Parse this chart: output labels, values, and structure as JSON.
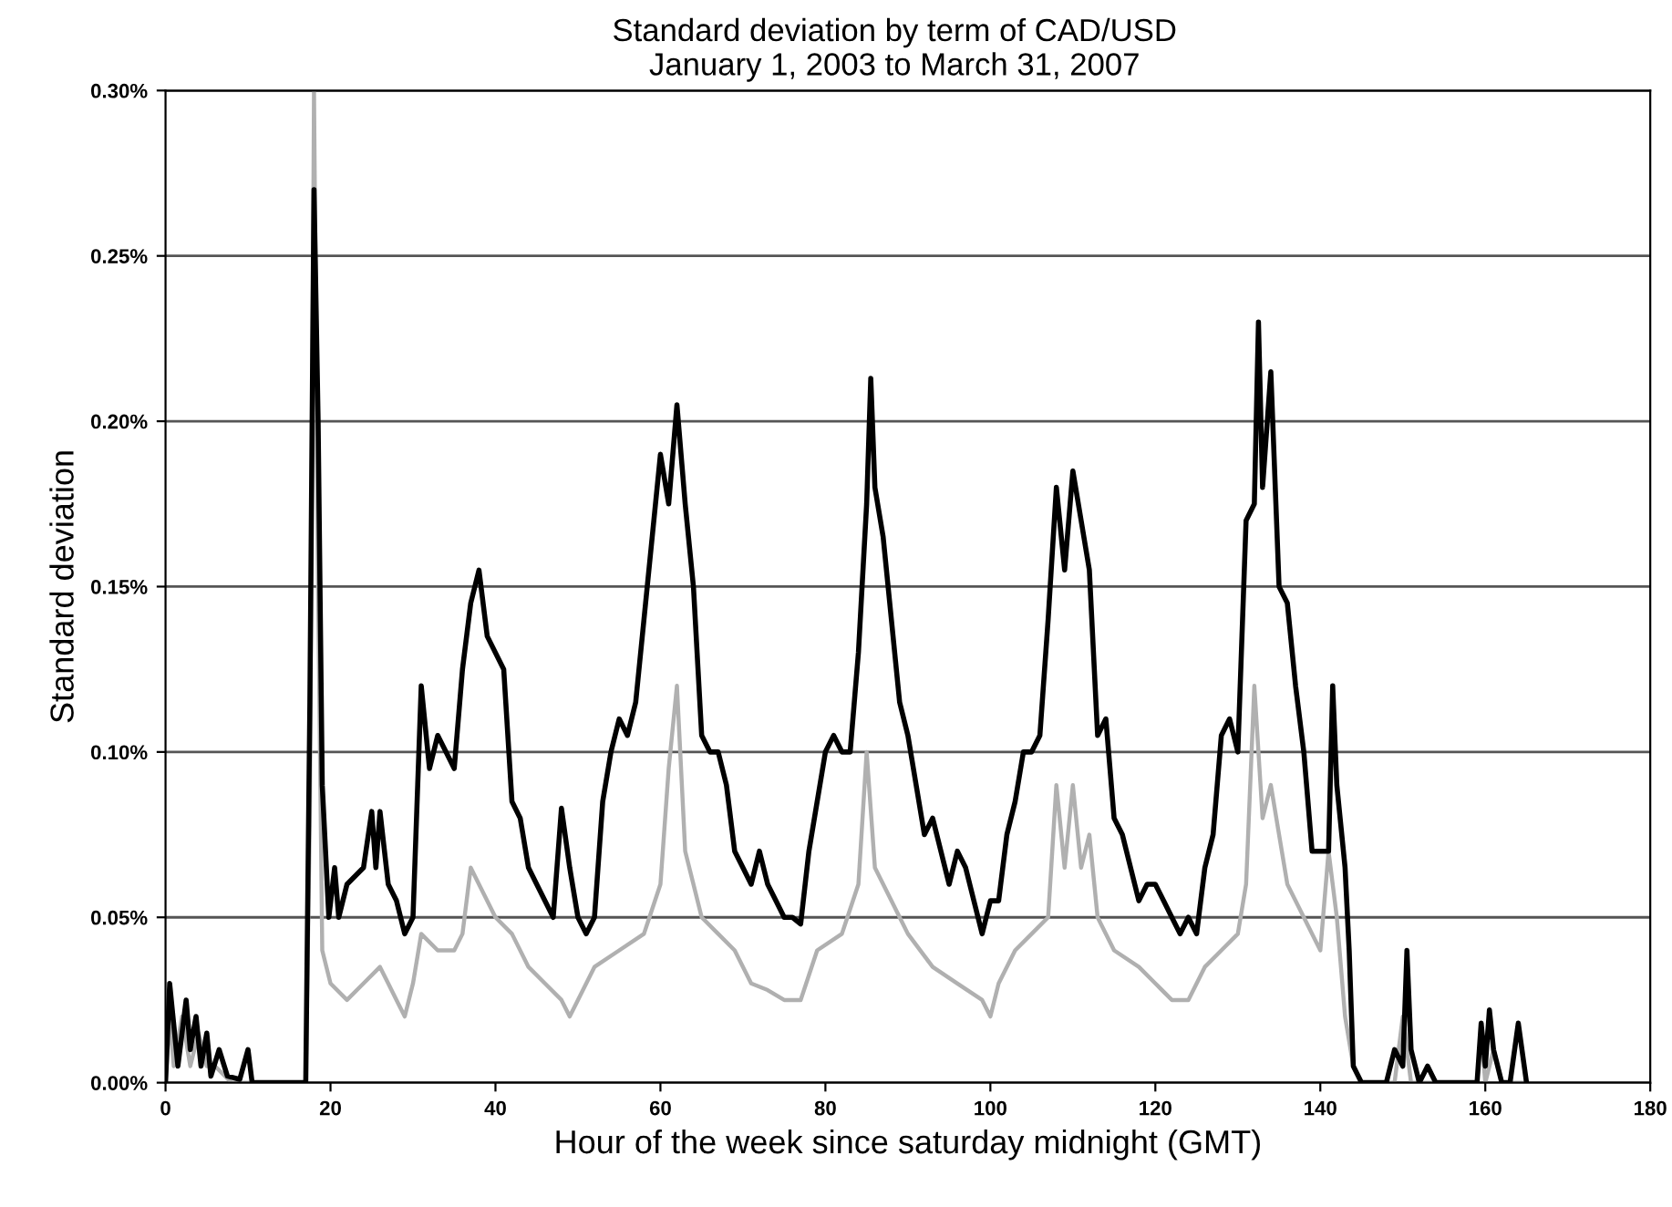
{
  "chart_data": {
    "type": "line",
    "title": "Standard deviation by term of CAD/USD",
    "subtitle": "January 1, 2003 to March 31, 2007",
    "xlabel": "Hour of the week since saturday midnight (GMT)",
    "ylabel": "Standard deviation",
    "xlim": [
      0,
      180
    ],
    "xticks": [
      0,
      20,
      40,
      60,
      80,
      100,
      120,
      140,
      160,
      180
    ],
    "ylim": [
      0,
      0.3
    ],
    "yticks": [
      {
        "value": 0,
        "label": "0.00%"
      },
      {
        "value": 0.05,
        "label": "0.05%"
      },
      {
        "value": 0.1,
        "label": "0.10%"
      },
      {
        "value": 0.15,
        "label": "0.15%"
      },
      {
        "value": 0.2,
        "label": "0.20%"
      },
      {
        "value": 0.25,
        "label": "0.25%"
      },
      {
        "value": 0.3,
        "label": "0.30%"
      }
    ],
    "grid": "y",
    "legend": false,
    "marker": "none",
    "line_style": "solid",
    "series": [
      {
        "color": "#b0b0b0",
        "x": [
          0,
          0.5,
          1,
          2,
          3,
          4,
          5,
          6,
          8,
          17,
          17.5,
          18,
          18.5,
          19,
          20,
          22,
          24,
          26,
          27,
          28,
          29,
          30,
          31,
          33,
          35,
          36,
          37,
          38,
          40,
          42,
          44,
          46,
          48,
          49,
          50,
          52,
          55,
          58,
          60,
          61,
          62,
          63,
          65,
          67,
          69,
          71,
          73,
          75,
          77,
          79,
          82,
          84,
          85,
          86,
          88,
          90,
          93,
          96,
          99,
          100,
          101,
          103,
          105,
          107,
          108,
          109,
          110,
          111,
          112,
          113,
          115,
          118,
          120,
          122,
          124,
          126,
          128,
          130,
          131,
          132,
          133,
          134,
          135,
          136,
          138,
          140,
          141,
          142,
          143,
          144,
          145,
          149,
          150,
          151,
          155,
          159,
          159.5,
          160,
          161,
          162,
          165
        ],
        "values": [
          0,
          0.02,
          0.005,
          0.02,
          0.005,
          0.015,
          0.005,
          0.005,
          0,
          0,
          0.08,
          0.3,
          0.15,
          0.04,
          0.03,
          0.025,
          0.03,
          0.035,
          0.03,
          0.025,
          0.02,
          0.03,
          0.045,
          0.04,
          0.04,
          0.045,
          0.065,
          0.06,
          0.05,
          0.045,
          0.035,
          0.03,
          0.025,
          0.02,
          0.025,
          0.035,
          0.04,
          0.045,
          0.06,
          0.095,
          0.12,
          0.07,
          0.05,
          0.045,
          0.04,
          0.03,
          0.028,
          0.025,
          0.025,
          0.04,
          0.045,
          0.06,
          0.1,
          0.065,
          0.055,
          0.045,
          0.035,
          0.03,
          0.025,
          0.02,
          0.03,
          0.04,
          0.045,
          0.05,
          0.09,
          0.065,
          0.09,
          0.065,
          0.075,
          0.05,
          0.04,
          0.035,
          0.03,
          0.025,
          0.025,
          0.035,
          0.04,
          0.045,
          0.06,
          0.12,
          0.08,
          0.09,
          0.075,
          0.06,
          0.05,
          0.04,
          0.07,
          0.05,
          0.02,
          0.005,
          0,
          0,
          0.02,
          0,
          0,
          0,
          0.015,
          0,
          0.01,
          0,
          0
        ]
      },
      {
        "color": "#000000",
        "x": [
          0,
          0.5,
          1.5,
          2.5,
          3,
          3.7,
          4.3,
          5,
          5.5,
          6.5,
          7.5,
          9,
          10,
          10.5,
          17,
          17.5,
          18,
          18.5,
          19,
          19.8,
          20.5,
          21,
          22,
          24,
          25,
          25.5,
          26,
          27,
          28,
          29,
          30,
          31,
          32,
          33,
          34,
          35,
          36,
          37,
          38,
          39,
          41,
          42,
          43,
          44,
          45,
          47,
          48,
          49,
          50,
          51,
          52,
          53,
          54,
          55,
          56,
          57,
          58,
          60,
          61,
          62,
          63,
          64,
          65,
          66,
          67,
          68,
          69,
          70,
          71,
          72,
          73,
          74,
          75,
          76,
          77,
          78,
          80,
          81,
          82,
          83,
          84,
          85,
          85.5,
          86,
          87,
          88,
          89,
          90,
          91,
          92,
          93,
          95,
          96,
          97,
          98,
          99,
          100,
          101,
          102,
          103,
          104,
          105,
          106,
          107,
          108,
          109,
          110,
          111,
          112,
          113,
          114,
          115,
          116,
          117,
          118,
          119,
          120,
          121,
          122,
          123,
          124,
          125,
          126,
          127,
          128,
          129,
          130,
          131,
          132,
          132.5,
          133,
          134,
          135,
          136,
          137,
          138,
          139,
          140,
          141,
          141.5,
          142,
          143,
          143.5,
          144,
          145,
          148,
          149,
          150,
          150.5,
          151,
          152,
          153,
          154,
          159,
          159.5,
          160,
          160.5,
          161,
          162,
          163,
          164,
          165
        ],
        "values": [
          0,
          0.03,
          0.005,
          0.025,
          0.01,
          0.02,
          0.005,
          0.015,
          0.002,
          0.01,
          0.002,
          0.001,
          0.01,
          0,
          0,
          0.115,
          0.27,
          0.2,
          0.09,
          0.05,
          0.065,
          0.05,
          0.06,
          0.065,
          0.082,
          0.065,
          0.082,
          0.06,
          0.055,
          0.045,
          0.05,
          0.12,
          0.095,
          0.105,
          0.1,
          0.095,
          0.125,
          0.145,
          0.155,
          0.135,
          0.125,
          0.085,
          0.08,
          0.065,
          0.06,
          0.05,
          0.083,
          0.065,
          0.05,
          0.045,
          0.05,
          0.085,
          0.1,
          0.11,
          0.105,
          0.115,
          0.14,
          0.19,
          0.175,
          0.205,
          0.175,
          0.15,
          0.105,
          0.1,
          0.1,
          0.09,
          0.07,
          0.065,
          0.06,
          0.07,
          0.06,
          0.055,
          0.05,
          0.05,
          0.048,
          0.07,
          0.1,
          0.105,
          0.1,
          0.1,
          0.13,
          0.175,
          0.213,
          0.18,
          0.165,
          0.14,
          0.115,
          0.105,
          0.09,
          0.075,
          0.08,
          0.06,
          0.07,
          0.065,
          0.055,
          0.045,
          0.055,
          0.055,
          0.075,
          0.085,
          0.1,
          0.1,
          0.105,
          0.14,
          0.18,
          0.155,
          0.185,
          0.17,
          0.155,
          0.105,
          0.11,
          0.08,
          0.075,
          0.065,
          0.055,
          0.06,
          0.06,
          0.055,
          0.05,
          0.045,
          0.05,
          0.045,
          0.065,
          0.075,
          0.105,
          0.11,
          0.1,
          0.17,
          0.175,
          0.23,
          0.18,
          0.215,
          0.15,
          0.145,
          0.12,
          0.1,
          0.07,
          0.07,
          0.07,
          0.12,
          0.09,
          0.065,
          0.04,
          0.005,
          0,
          0,
          0.01,
          0.005,
          0.04,
          0.01,
          0,
          0.005,
          0,
          0,
          0.018,
          0.005,
          0.022,
          0.01,
          0,
          0,
          0.018,
          0
        ]
      }
    ]
  }
}
